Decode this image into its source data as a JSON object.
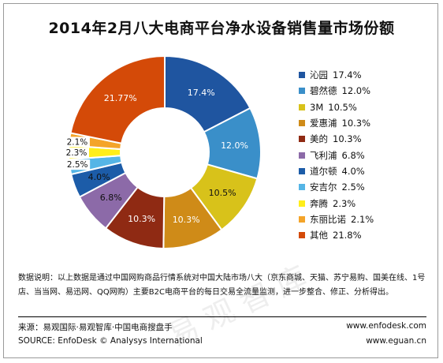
{
  "title": "2014年2月八大电商平台净水设备销售量市场份额",
  "chart_data": {
    "type": "pie",
    "title": "2014年2月八大电商平台净水设备销售量市场份额",
    "slices": [
      {
        "name": "沁园",
        "value": 17.4,
        "label": "17.4%",
        "legend": "17.4%",
        "color": "#1f55a0"
      },
      {
        "name": "碧然德",
        "value": 12.0,
        "label": "12.0%",
        "legend": "12.0%",
        "color": "#3a8fc9"
      },
      {
        "name": "3M",
        "value": 10.5,
        "label": "10.5%",
        "legend": "10.5%",
        "color": "#d8c21a"
      },
      {
        "name": "爱惠浦",
        "value": 10.3,
        "label": "10.3%",
        "legend": "10.3%",
        "color": "#cf8b18"
      },
      {
        "name": "美的",
        "value": 10.3,
        "label": "10.3%",
        "legend": "10.3%",
        "color": "#8f2a13"
      },
      {
        "name": "飞利浦",
        "value": 6.8,
        "label": "6.8%",
        "legend": "6.8%",
        "color": "#8c6aa8"
      },
      {
        "name": "道尔顿",
        "value": 4.0,
        "label": "4.0%",
        "legend": "4.0%",
        "color": "#1c5ca8"
      },
      {
        "name": "安吉尔",
        "value": 2.5,
        "label": "2.5%",
        "legend": "2.5%",
        "color": "#55b5e6"
      },
      {
        "name": "奔腾",
        "value": 2.3,
        "label": "2.3%",
        "legend": "2.3%",
        "color": "#ffee1a"
      },
      {
        "name": "东丽比诺",
        "value": 2.1,
        "label": "2.1%",
        "legend": "2.1%",
        "color": "#f4a429"
      },
      {
        "name": "其他",
        "value": 21.77,
        "label": "21.77%",
        "legend": "21.8%",
        "color": "#d44a08"
      }
    ],
    "legend_position": "right"
  },
  "note": "数据说明：以上数据是通过中国网购商品行情系统对中国大陆市场八大（京东商城、天猫、苏宁易购、国美在线、1号店、当当网、易迅网、QQ网购）主要B2C电商平台的每日交易全流量监测，进一步整合、修正、分析得出。",
  "source_cn": "来源：易观国际·易观智库·中国电商搜盘手",
  "source_en": "SOURCE: EnfoDesk © Analysys International",
  "url1": "www.enfodesk.com",
  "url2": "www.eguan.cn",
  "watermark": "易观智库"
}
